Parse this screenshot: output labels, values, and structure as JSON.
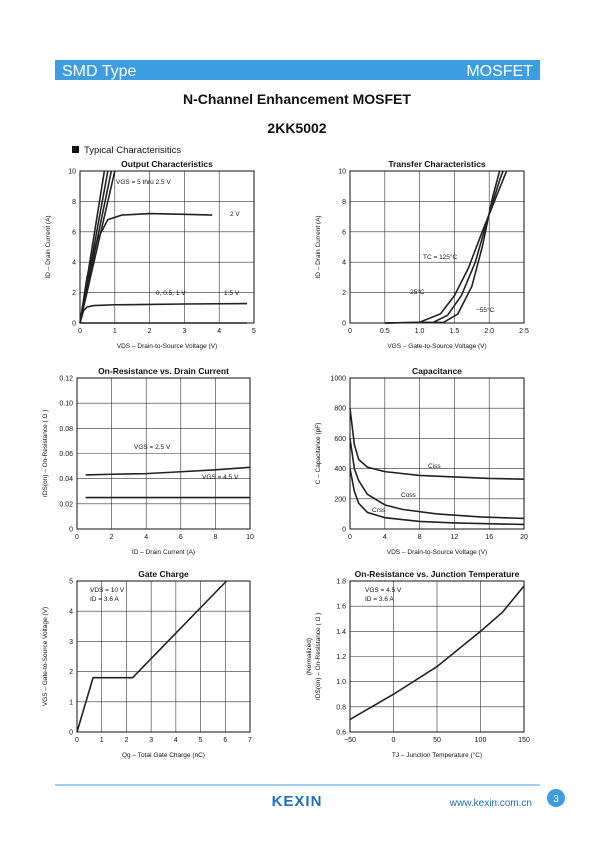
{
  "header": {
    "left": "SMD Type",
    "right": "MOSFET"
  },
  "title": "N-Channel Enhancement MOSFET",
  "part": "2KK5002",
  "section": "Typical Characterisitics",
  "footer": {
    "logo": "KEXIN",
    "url": "www.kexin.com.cn",
    "page": "3"
  },
  "chart_data": [
    {
      "type": "line",
      "title": "Output Characteristics",
      "xlabel": "VDS – Drain-to-Source Voltage (V)",
      "ylabel": [
        "ID – Drain Current (A)"
      ],
      "xlim": [
        0,
        5
      ],
      "ylim": [
        0,
        10
      ],
      "xticks": [
        0,
        1,
        2,
        3,
        4,
        5
      ],
      "yticks": [
        0,
        2,
        4,
        6,
        8,
        10
      ],
      "grid": true,
      "series": [
        {
          "color": "#222",
          "x": [
            0,
            0.35,
            0.7
          ],
          "values": [
            0,
            5,
            10
          ]
        },
        {
          "color": "#222",
          "x": [
            0,
            0.4,
            0.8
          ],
          "values": [
            0,
            5,
            10
          ]
        },
        {
          "color": "#222",
          "x": [
            0,
            0.45,
            0.9
          ],
          "values": [
            0,
            5,
            10
          ]
        },
        {
          "color": "#222",
          "x": [
            0,
            0.5,
            1.0
          ],
          "values": [
            0,
            5,
            10
          ]
        },
        {
          "color": "#222",
          "x": [
            0,
            0.2,
            0.5,
            0.8,
            1.2,
            2,
            3,
            3.8
          ],
          "values": [
            0,
            3,
            5.5,
            6.8,
            7.1,
            7.2,
            7.15,
            7.1
          ]
        },
        {
          "color": "#222",
          "x": [
            0,
            0.1,
            0.2,
            0.4,
            1,
            2,
            3,
            4.8
          ],
          "values": [
            0,
            0.8,
            1.05,
            1.15,
            1.2,
            1.22,
            1.25,
            1.28
          ]
        },
        {
          "color": "#222",
          "x": [
            0,
            4.8
          ],
          "values": [
            0,
            0
          ]
        }
      ],
      "annotations": [
        "VGS = 5 thru 2.5 V",
        "2 V",
        "0, 0.5, 1 V",
        "1.5 V"
      ]
    },
    {
      "type": "line",
      "title": "Transfer Characteristics",
      "xlabel": "VGS – Gate-to-Source Voltage (V)",
      "ylabel": [
        "ID – Drain Current (A)"
      ],
      "xlim": [
        0,
        2.5
      ],
      "ylim": [
        0,
        10
      ],
      "xticks": [
        0,
        0.5,
        {
          "value": 1,
          "label": "1.0"
        },
        1.5,
        {
          "value": 2,
          "label": "2.0"
        },
        2.5
      ],
      "yticks": [
        0,
        2,
        4,
        6,
        8,
        10
      ],
      "grid": true,
      "series": [
        {
          "color": "#222",
          "x": [
            0.5,
            1.0,
            1.3,
            1.5,
            1.7,
            1.9,
            2.1,
            2.25
          ],
          "values": [
            0,
            0.05,
            0.6,
            1.8,
            3.6,
            6,
            8.3,
            10
          ]
        },
        {
          "color": "#222",
          "x": [
            0.5,
            1.2,
            1.4,
            1.6,
            1.8,
            2.0,
            2.15,
            2.2
          ],
          "values": [
            0,
            0.05,
            0.5,
            1.8,
            4,
            7.2,
            9.4,
            10
          ]
        },
        {
          "color": "#222",
          "x": [
            0.5,
            1.35,
            1.55,
            1.75,
            1.9,
            2.05,
            2.15
          ],
          "values": [
            0,
            0.05,
            0.6,
            2.4,
            5,
            8.3,
            10
          ]
        }
      ],
      "annotations": [
        "TC = 125°C",
        "25°C",
        "−55°C"
      ]
    },
    {
      "type": "line",
      "title": "On-Resistance vs. Drain Current",
      "xlabel": "ID – Drain Current (A)",
      "ylabel": [
        "rDS(on) – On-Resistance ( Ω )"
      ],
      "xlim": [
        0,
        10
      ],
      "ylim": [
        0,
        0.12
      ],
      "xticks": [
        0,
        2,
        4,
        6,
        8,
        10
      ],
      "yticks": [
        0,
        0.02,
        0.04,
        0.06,
        0.08,
        {
          "value": 0.1,
          "label": "0.10"
        },
        0.12
      ],
      "grid": true,
      "series": [
        {
          "color": "#222",
          "x": [
            0.5,
            2,
            4,
            6,
            8,
            10
          ],
          "values": [
            0.043,
            0.0435,
            0.044,
            0.0455,
            0.047,
            0.049
          ]
        },
        {
          "color": "#222",
          "x": [
            0.5,
            10
          ],
          "values": [
            0.025,
            0.025
          ]
        }
      ],
      "annotations": [
        "VGS = 2.5 V",
        "VGS = 4.5 V"
      ]
    },
    {
      "type": "line",
      "title": "Capacitance",
      "xlabel": "VDS – Drain-to-Source Voltage (V)",
      "ylabel": [
        "C – Capacitance (pF)"
      ],
      "xlim": [
        0,
        20
      ],
      "ylim": [
        0,
        1000
      ],
      "xticks": [
        0,
        4,
        8,
        12,
        16,
        20
      ],
      "yticks": [
        0,
        200,
        400,
        600,
        800,
        1000
      ],
      "grid": true,
      "series": [
        {
          "color": "#222",
          "x": [
            0,
            0.5,
            1,
            2,
            4,
            8,
            12,
            16,
            20
          ],
          "values": [
            800,
            560,
            460,
            410,
            380,
            355,
            345,
            335,
            330
          ]
        },
        {
          "color": "#222",
          "x": [
            0,
            0.5,
            1,
            2,
            4,
            6,
            10,
            15,
            20
          ],
          "values": [
            600,
            400,
            320,
            230,
            160,
            130,
            100,
            80,
            70
          ]
        },
        {
          "color": "#222",
          "x": [
            0,
            0.5,
            1,
            2,
            4,
            8,
            12,
            20
          ],
          "values": [
            400,
            250,
            170,
            110,
            75,
            50,
            40,
            30
          ]
        }
      ],
      "annotations": [
        "Ciss",
        "Coss",
        "Crss"
      ]
    },
    {
      "type": "line",
      "title": "Gate Charge",
      "xlabel": "Qg – Total Gate Charge (nC)",
      "ylabel": [
        "VGS – Gate-to-Source Voltage (V)"
      ],
      "xlim": [
        0,
        7
      ],
      "ylim": [
        0,
        5
      ],
      "xticks": [
        0,
        1,
        2,
        3,
        4,
        5,
        6,
        7
      ],
      "yticks": [
        0,
        1,
        2,
        3,
        4,
        5
      ],
      "grid": true,
      "series": [
        {
          "color": "#222",
          "x": [
            0,
            0.65,
            2.25,
            6.05
          ],
          "values": [
            0,
            1.8,
            1.8,
            5
          ]
        }
      ],
      "annotations": [
        "VDS = 10 V",
        "ID = 3.6 A"
      ]
    },
    {
      "type": "line",
      "title": "On-Resistance vs. Junction Temperature",
      "xlabel": "TJ – Junction Temperature (°C)",
      "ylabel": [
        "rDS(on) – On-Resistance ( Ω )",
        "(Normalized)"
      ],
      "xlim": [
        -50,
        150
      ],
      "ylim": [
        0.6,
        1.8
      ],
      "xticks": [
        {
          "value": -50,
          "label": "−50"
        },
        0,
        50,
        100,
        150
      ],
      "yticks": [
        0.6,
        0.8,
        {
          "value": 1,
          "label": "1.0"
        },
        1.2,
        1.4,
        1.6,
        1.8
      ],
      "grid": true,
      "series": [
        {
          "color": "#222",
          "x": [
            -50,
            -25,
            0,
            50,
            100,
            125,
            150
          ],
          "values": [
            0.7,
            0.8,
            0.9,
            1.12,
            1.4,
            1.55,
            1.76
          ]
        }
      ],
      "annotations": [
        "VGS = 4.5 V",
        "ID = 3.6 A"
      ]
    }
  ]
}
